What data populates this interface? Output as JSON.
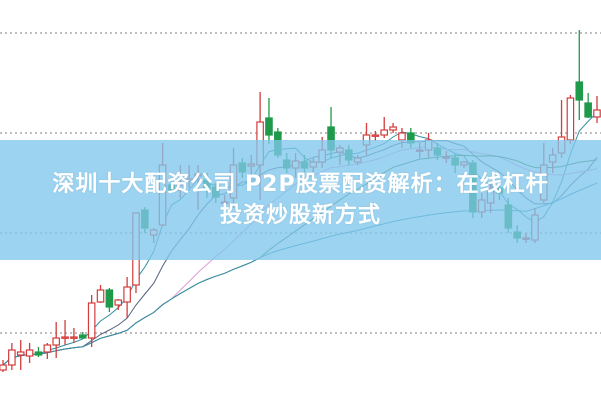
{
  "title": {
    "line1": "深圳十大配资公司 P2P股票配资解析：在线杠杆",
    "line2": "投资炒股新方式"
  },
  "colors": {
    "up": "#d23c3c",
    "down": "#1f9a4a",
    "banner": "#80c6ec",
    "grid": "#999999",
    "ma": [
      "#2f8fa0",
      "#56607f",
      "#e29ad8",
      "#2e7d32",
      "#3a8fb0"
    ]
  },
  "chart_data": {
    "type": "candlestick",
    "title": "",
    "xlabel": "",
    "ylabel": "",
    "grid": true,
    "gridlines_y": [
      10,
      20,
      30,
      40
    ],
    "ylim": [
      3.2,
      43.3
    ],
    "moving_averages": true,
    "ohlc": [
      [
        6.3,
        7.3,
        6.1,
        6.8
      ],
      [
        6.8,
        9.0,
        6.3,
        8.3
      ],
      [
        7.8,
        9.3,
        6.3,
        8.1
      ],
      [
        7.7,
        9.0,
        7.0,
        8.3
      ],
      [
        8.1,
        8.6,
        7.6,
        7.8
      ],
      [
        8.1,
        9.0,
        7.4,
        8.8
      ],
      [
        8.8,
        11.1,
        7.5,
        9.5
      ],
      [
        9.5,
        11.3,
        8.8,
        9.6
      ],
      [
        9.5,
        10.5,
        9.0,
        9.6
      ],
      [
        9.8,
        10.1,
        9.4,
        9.5
      ],
      [
        9.5,
        13.8,
        8.6,
        13.0
      ],
      [
        13.1,
        14.8,
        13.0,
        14.3
      ],
      [
        14.3,
        14.5,
        12.1,
        12.6
      ],
      [
        12.8,
        13.4,
        12.3,
        13.3
      ],
      [
        13.1,
        15.6,
        11.5,
        14.6
      ],
      [
        14.8,
        22.0,
        14.0,
        22.0
      ],
      [
        22.3,
        22.6,
        20.0,
        20.5
      ],
      [
        19.8,
        20.5,
        19.0,
        20.3
      ],
      [
        20.8,
        29.0,
        20.7,
        26.8
      ],
      [
        24.8,
        25.3,
        24.0,
        24.3
      ],
      [
        24.3,
        26.8,
        23.5,
        24.8
      ],
      [
        25.2,
        26.8,
        24.5,
        25.4
      ],
      [
        25.7,
        26.8,
        22.3,
        25.9
      ],
      [
        25.3,
        26.0,
        23.5,
        24.3
      ],
      [
        24.6,
        25.0,
        23.0,
        23.6
      ],
      [
        23.0,
        23.8,
        22.5,
        23.1
      ],
      [
        23.5,
        28.5,
        22.5,
        26.8
      ],
      [
        27.0,
        27.5,
        25.5,
        26.1
      ],
      [
        26.7,
        27.8,
        25.8,
        26.9
      ],
      [
        26.8,
        34.1,
        23.3,
        31.1
      ],
      [
        31.5,
        33.5,
        28.9,
        29.8
      ],
      [
        30.1,
        30.5,
        27.5,
        27.8
      ],
      [
        27.3,
        28.0,
        26.0,
        26.5
      ],
      [
        26.5,
        28.0,
        25.5,
        27.2
      ],
      [
        27.1,
        27.8,
        26.0,
        26.5
      ],
      [
        26.6,
        27.5,
        26.0,
        27.1
      ],
      [
        27.1,
        29.6,
        26.5,
        28.3
      ],
      [
        30.6,
        32.6,
        27.5,
        28.3
      ],
      [
        28.1,
        28.8,
        26.8,
        28.5
      ],
      [
        28.3,
        28.8,
        26.8,
        27.3
      ],
      [
        27.1,
        27.8,
        26.8,
        27.5
      ],
      [
        28.8,
        31.0,
        27.8,
        29.8
      ],
      [
        29.7,
        30.2,
        29.2,
        29.8
      ],
      [
        29.8,
        31.6,
        29.5,
        30.3
      ],
      [
        30.3,
        31.0,
        30.0,
        30.6
      ],
      [
        29.3,
        30.5,
        28.5,
        30.0
      ],
      [
        30.0,
        30.5,
        28.5,
        29.0
      ],
      [
        28.3,
        29.0,
        27.5,
        28.3
      ],
      [
        28.3,
        30.0,
        27.5,
        29.3
      ],
      [
        28.5,
        29.0,
        27.3,
        27.8
      ],
      [
        27.6,
        28.2,
        27.0,
        27.6
      ],
      [
        27.5,
        28.0,
        26.0,
        26.8
      ],
      [
        26.8,
        27.2,
        26.5,
        27.1
      ],
      [
        27.0,
        27.3,
        21.5,
        22.1
      ],
      [
        22.1,
        24.0,
        21.5,
        23.3
      ],
      [
        23.0,
        25.0,
        22.0,
        24.5
      ],
      [
        24.5,
        25.0,
        23.3,
        24.0
      ],
      [
        22.8,
        23.5,
        20.0,
        20.5
      ],
      [
        20.1,
        20.8,
        19.0,
        19.5
      ],
      [
        19.5,
        20.0,
        19.0,
        19.5
      ],
      [
        19.3,
        22.5,
        19.0,
        21.8
      ],
      [
        23.3,
        29.0,
        23.0,
        26.8
      ],
      [
        27.1,
        28.5,
        26.0,
        27.8
      ],
      [
        28.0,
        33.3,
        27.5,
        29.6
      ],
      [
        29.3,
        33.8,
        28.9,
        33.5
      ],
      [
        35.1,
        40.3,
        31.3,
        33.3
      ],
      [
        33.0,
        34.0,
        31.5,
        31.6
      ],
      [
        31.6,
        33.7,
        31.0,
        32.3
      ]
    ]
  }
}
